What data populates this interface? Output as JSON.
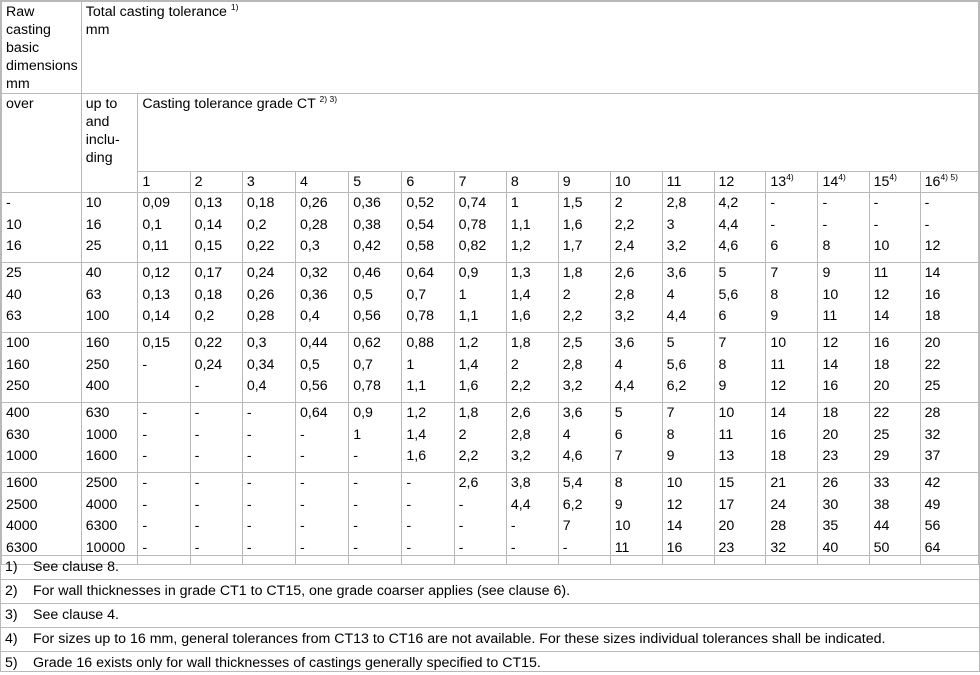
{
  "header": {
    "raw_casting_label": "Raw casting basic dimensions mm",
    "total_tolerance_label": "Total casting tolerance",
    "total_tolerance_sup": "1)",
    "total_tolerance_unit": "mm",
    "over_label": "over",
    "upto_label": "up to and inclu-ding",
    "grade_label": "Casting tolerance grade CT",
    "grade_sup": "2) 3)",
    "grades": [
      {
        "n": "1",
        "sup": ""
      },
      {
        "n": "2",
        "sup": ""
      },
      {
        "n": "3",
        "sup": ""
      },
      {
        "n": "4",
        "sup": ""
      },
      {
        "n": "5",
        "sup": ""
      },
      {
        "n": "6",
        "sup": ""
      },
      {
        "n": "7",
        "sup": ""
      },
      {
        "n": "8",
        "sup": ""
      },
      {
        "n": "9",
        "sup": ""
      },
      {
        "n": "10",
        "sup": ""
      },
      {
        "n": "11",
        "sup": ""
      },
      {
        "n": "12",
        "sup": ""
      },
      {
        "n": "13",
        "sup": "4)"
      },
      {
        "n": "14",
        "sup": "4)"
      },
      {
        "n": "15",
        "sup": "4)"
      },
      {
        "n": "16",
        "sup": "4) 5)"
      }
    ]
  },
  "groups": [
    {
      "over": [
        "-",
        "10",
        "16"
      ],
      "upto": [
        "10",
        "16",
        "25"
      ],
      "cols": [
        [
          "0,09",
          "0,1",
          "0,11"
        ],
        [
          "0,13",
          "0,14",
          "0,15"
        ],
        [
          "0,18",
          "0,2",
          "0,22"
        ],
        [
          "0,26",
          "0,28",
          "0,3"
        ],
        [
          "0,36",
          "0,38",
          "0,42"
        ],
        [
          "0,52",
          "0,54",
          "0,58"
        ],
        [
          "0,74",
          "0,78",
          "0,82"
        ],
        [
          "1",
          "1,1",
          "1,2"
        ],
        [
          "1,5",
          "1,6",
          "1,7"
        ],
        [
          "2",
          "2,2",
          "2,4"
        ],
        [
          "2,8",
          "3",
          "3,2"
        ],
        [
          "4,2",
          "4,4",
          "4,6"
        ],
        [
          "-",
          "-",
          "6"
        ],
        [
          "-",
          "-",
          "8"
        ],
        [
          "-",
          "-",
          "10"
        ],
        [
          "-",
          "-",
          "12"
        ]
      ]
    },
    {
      "over": [
        "25",
        "40",
        "63"
      ],
      "upto": [
        "40",
        "63",
        "100"
      ],
      "cols": [
        [
          "0,12",
          "0,13",
          "0,14"
        ],
        [
          "0,17",
          "0,18",
          "0,2"
        ],
        [
          "0,24",
          "0,26",
          "0,28"
        ],
        [
          "0,32",
          "0,36",
          "0,4"
        ],
        [
          "0,46",
          "0,5",
          "0,56"
        ],
        [
          "0,64",
          "0,7",
          "0,78"
        ],
        [
          "0,9",
          "1",
          "1,1"
        ],
        [
          "1,3",
          "1,4",
          "1,6"
        ],
        [
          "1,8",
          "2",
          "2,2"
        ],
        [
          "2,6",
          "2,8",
          "3,2"
        ],
        [
          "3,6",
          "4",
          "4,4"
        ],
        [
          "5",
          "5,6",
          "6"
        ],
        [
          "7",
          "8",
          "9"
        ],
        [
          "9",
          "10",
          "11"
        ],
        [
          "11",
          "12",
          "14"
        ],
        [
          "14",
          "16",
          "18"
        ]
      ]
    },
    {
      "over": [
        "100",
        "160",
        "250"
      ],
      "upto": [
        "160",
        "250",
        "400"
      ],
      "cols": [
        [
          "0,15",
          "-",
          ""
        ],
        [
          "0,22",
          "0,24",
          "-"
        ],
        [
          "0,3",
          "0,34",
          "0,4"
        ],
        [
          "0,44",
          "0,5",
          "0,56"
        ],
        [
          "0,62",
          "0,7",
          "0,78"
        ],
        [
          "0,88",
          "1",
          "1,1"
        ],
        [
          "1,2",
          "1,4",
          "1,6"
        ],
        [
          "1,8",
          "2",
          "2,2"
        ],
        [
          "2,5",
          "2,8",
          "3,2"
        ],
        [
          "3,6",
          "4",
          "4,4"
        ],
        [
          "5",
          "5,6",
          "6,2"
        ],
        [
          "7",
          "8",
          "9"
        ],
        [
          "10",
          "11",
          "12"
        ],
        [
          "12",
          "14",
          "16"
        ],
        [
          "16",
          "18",
          "20"
        ],
        [
          "20",
          "22",
          "25"
        ]
      ]
    },
    {
      "over": [
        "400",
        "630",
        "1000"
      ],
      "upto": [
        "630",
        "1000",
        "1600"
      ],
      "cols": [
        [
          "-",
          "-",
          "-"
        ],
        [
          "-",
          "-",
          "-"
        ],
        [
          "-",
          "-",
          "-"
        ],
        [
          "0,64",
          "-",
          "-"
        ],
        [
          "0,9",
          "1",
          "-"
        ],
        [
          "1,2",
          "1,4",
          "1,6"
        ],
        [
          "1,8",
          "2",
          "2,2"
        ],
        [
          "2,6",
          "2,8",
          "3,2"
        ],
        [
          "3,6",
          "4",
          "4,6"
        ],
        [
          "5",
          "6",
          "7"
        ],
        [
          "7",
          "8",
          "9"
        ],
        [
          "10",
          "11",
          "13"
        ],
        [
          "14",
          "16",
          "18"
        ],
        [
          "18",
          "20",
          "23"
        ],
        [
          "22",
          "25",
          "29"
        ],
        [
          "28",
          "32",
          "37"
        ]
      ]
    },
    {
      "over": [
        "1600",
        "2500",
        "4000",
        "6300"
      ],
      "upto": [
        "2500",
        "4000",
        "6300",
        "10000"
      ],
      "cols": [
        [
          "-",
          "-",
          "-",
          "-"
        ],
        [
          "-",
          "-",
          "-",
          "-"
        ],
        [
          "-",
          "-",
          "-",
          "-"
        ],
        [
          "-",
          "-",
          "-",
          "-"
        ],
        [
          "-",
          "-",
          "-",
          "-"
        ],
        [
          "-",
          "-",
          "-",
          "-"
        ],
        [
          "2,6",
          "-",
          "-",
          "-"
        ],
        [
          "3,8",
          "4,4",
          "-",
          "-"
        ],
        [
          "5,4",
          "6,2",
          "7",
          "-"
        ],
        [
          "8",
          "9",
          "10",
          "11"
        ],
        [
          "10",
          "12",
          "14",
          "16"
        ],
        [
          "15",
          "17",
          "20",
          "23"
        ],
        [
          "21",
          "24",
          "28",
          "32"
        ],
        [
          "26",
          "30",
          "35",
          "40"
        ],
        [
          "33",
          "38",
          "44",
          "50"
        ],
        [
          "42",
          "49",
          "56",
          "64"
        ]
      ]
    }
  ],
  "notes": [
    {
      "num": "1)",
      "text": "See clause 8."
    },
    {
      "num": "2)",
      "text": "For wall thicknesses in grade CT1 to CT15, one grade coarser applies (see clause 6)."
    },
    {
      "num": "3)",
      "text": "See clause 4."
    },
    {
      "num": "4)",
      "text": "For sizes up to 16 mm, general tolerances from CT13 to CT16 are not available. For these sizes individual tolerances shall be indicated."
    },
    {
      "num": "5)",
      "text": "Grade 16 exists only for wall thicknesses of castings generally specified to CT15."
    }
  ]
}
